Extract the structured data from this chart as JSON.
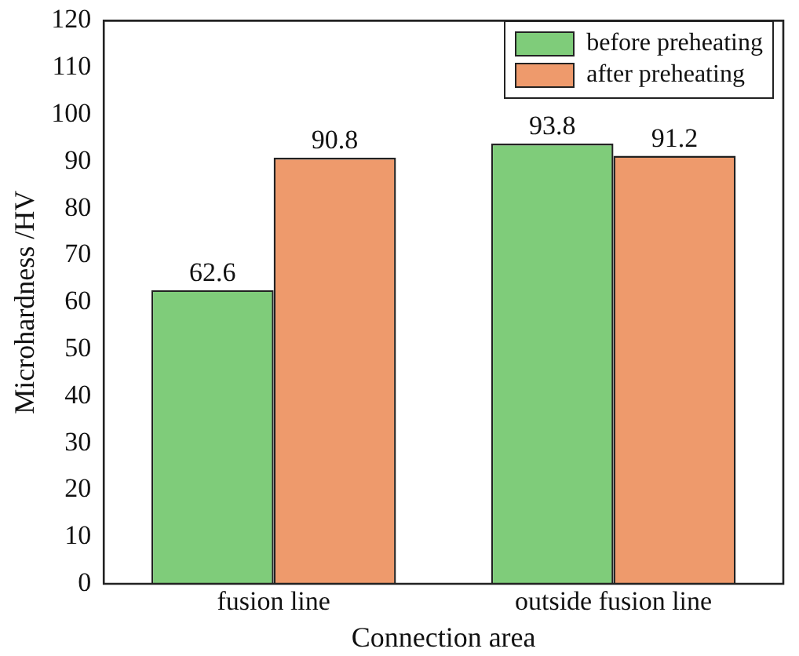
{
  "chart_data": {
    "type": "bar",
    "xlabel": "Connection area",
    "ylabel": "Microhardness /HV",
    "categories": [
      "fusion line",
      "outside fusion line"
    ],
    "series": [
      {
        "name": "before preheating",
        "color": "#7fcc7a",
        "values": [
          62.6,
          93.8
        ]
      },
      {
        "name": "after preheating",
        "color": "#ee9a6c",
        "values": [
          90.8,
          91.2
        ]
      }
    ],
    "ylim": [
      0,
      120
    ],
    "yticks": [
      0,
      10,
      20,
      30,
      40,
      50,
      60,
      70,
      80,
      90,
      100,
      110,
      120
    ],
    "grid": false,
    "legend": "top right",
    "data_labels": true
  }
}
